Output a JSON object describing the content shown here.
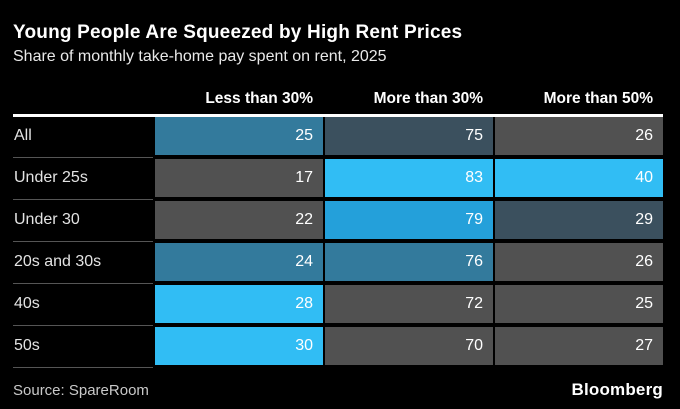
{
  "header": {
    "title": "Young People Are Squeezed by High Rent Prices",
    "subtitle": "Share of monthly take-home pay spent on rent, 2025"
  },
  "footer": {
    "source": "Source: SpareRoom",
    "brand": "Bloomberg"
  },
  "chart_data": {
    "type": "heatmap",
    "title": "Young People Are Squeezed by High Rent Prices",
    "subtitle": "Share of monthly take-home pay spent on rent, 2025",
    "columns": [
      "Less than 30%",
      "More than 30%",
      "More than 50%"
    ],
    "rows": [
      {
        "label": "All",
        "values": [
          25,
          75,
          26
        ],
        "cell_colors": [
          "steel",
          "slate",
          "gray"
        ]
      },
      {
        "label": "Under 25s",
        "values": [
          17,
          83,
          40
        ],
        "cell_colors": [
          "gray",
          "bright",
          "bright"
        ]
      },
      {
        "label": "Under 30",
        "values": [
          22,
          79,
          29
        ],
        "cell_colors": [
          "gray",
          "medium",
          "slate"
        ]
      },
      {
        "label": "20s and 30s",
        "values": [
          24,
          76,
          26
        ],
        "cell_colors": [
          "steel",
          "steel",
          "gray"
        ]
      },
      {
        "label": "40s",
        "values": [
          28,
          72,
          25
        ],
        "cell_colors": [
          "bright",
          "gray",
          "gray"
        ]
      },
      {
        "label": "50s",
        "values": [
          30,
          70,
          27
        ],
        "cell_colors": [
          "bright",
          "gray",
          "gray"
        ]
      }
    ],
    "colors": {
      "bright": "#31bdf4",
      "medium": "#24a0da",
      "steel": "#337a9c",
      "slate": "#3b505e",
      "gray": "#515151"
    },
    "background": "#000000",
    "legend": "none",
    "value_range_note": "cell shading scales with value intensity per column"
  }
}
